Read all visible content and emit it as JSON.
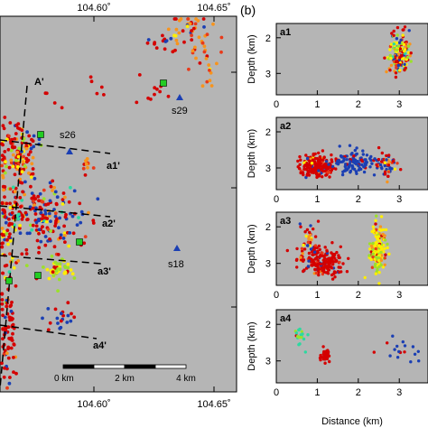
{
  "chart_data": {
    "type": "scatter",
    "map_panel": {
      "x_ticks": [
        "104.60˚",
        "104.65˚"
      ],
      "profiles": [
        {
          "start": "A'"
        },
        {
          "name": "a1'"
        },
        {
          "name": "a2'"
        },
        {
          "name": "a3'"
        },
        {
          "name": "a4'"
        }
      ],
      "stations": [
        "s26",
        "s29",
        "s18"
      ],
      "scale_bar": [
        "0 km",
        "2 km",
        "4 km"
      ],
      "stations_symbol": "blue-triangle",
      "sites_symbol": "green-square"
    },
    "profile_panel": {
      "label": "(b)",
      "ylabel": "Depth (km)",
      "xlabel": "Distance (km)",
      "x_ticks": [
        0,
        1,
        2,
        3
      ],
      "y_ticks": [
        2,
        3
      ],
      "xlim": [
        0,
        3.7
      ],
      "ylim": [
        1.6,
        3.6
      ],
      "subplots": [
        {
          "name": "a1",
          "clusters": [
            {
              "cx": 3.0,
              "cy": 2.45,
              "sx": 0.12,
              "sy": 0.3,
              "n": 160
            }
          ]
        },
        {
          "name": "a2",
          "clusters": [
            {
              "cx": 1.0,
              "cy": 2.95,
              "sx": 0.2,
              "sy": 0.15,
              "n": 200
            },
            {
              "cx": 1.9,
              "cy": 2.85,
              "sx": 0.3,
              "sy": 0.15,
              "n": 120
            },
            {
              "cx": 2.7,
              "cy": 2.9,
              "sx": 0.2,
              "sy": 0.18,
              "n": 50
            }
          ]
        },
        {
          "name": "a3",
          "clusters": [
            {
              "cx": 1.1,
              "cy": 2.95,
              "sx": 0.25,
              "sy": 0.2,
              "n": 180
            },
            {
              "cx": 2.5,
              "cy": 2.65,
              "sx": 0.1,
              "sy": 0.35,
              "n": 160
            },
            {
              "cx": 0.8,
              "cy": 2.45,
              "sx": 0.12,
              "sy": 0.3,
              "n": 40
            }
          ]
        },
        {
          "name": "a4",
          "clusters": [
            {
              "cx": 1.2,
              "cy": 2.85,
              "sx": 0.05,
              "sy": 0.08,
              "n": 45
            },
            {
              "cx": 0.6,
              "cy": 2.35,
              "sx": 0.07,
              "sy": 0.15,
              "n": 20
            },
            {
              "cx": 3.0,
              "cy": 2.7,
              "sx": 0.25,
              "sy": 0.2,
              "n": 18
            }
          ]
        }
      ]
    },
    "color_scale": [
      "#d40000",
      "#e83a1a",
      "#f7941d",
      "#ffee00",
      "#9be02b",
      "#2bd9a0",
      "#1b3fb3"
    ]
  }
}
